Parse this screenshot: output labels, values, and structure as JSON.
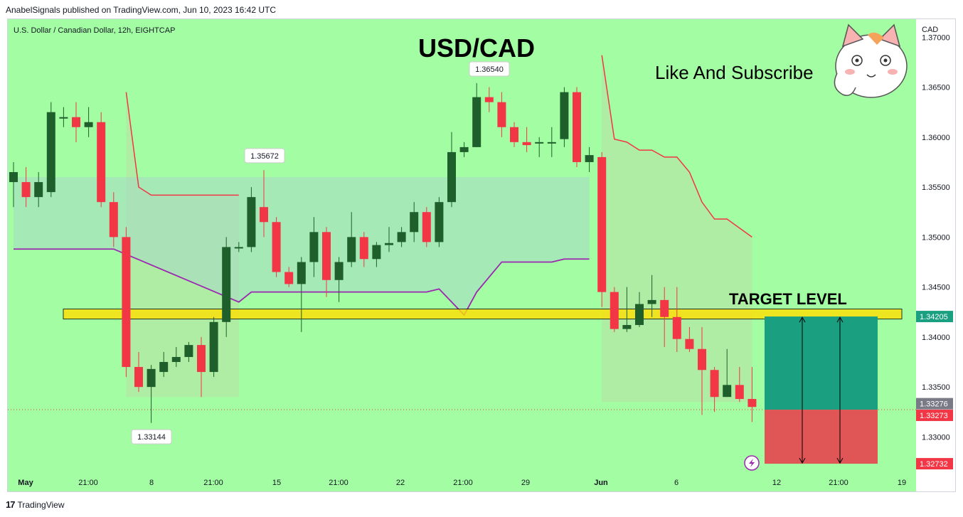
{
  "header": {
    "published_line": "AnabelSignals published on TradingView.com, Jun 10, 2023 16:42 UTC"
  },
  "chart": {
    "symbol_line": "U.S. Dollar / Canadian Dollar, 12h, EIGHTCAP",
    "title": "USD/CAD",
    "subscribe_text": "Like And Subscribe",
    "target_text": "TARGET LEVEL",
    "currency": "CAD",
    "background": "#a3fda3",
    "bull_color": "#1f5f2c",
    "bear_color": "#f23645"
  },
  "footer": {
    "brand": "TradingView"
  },
  "chart_data": {
    "type": "candlestick",
    "ylim": [
      1.3264,
      1.3718
    ],
    "y_ticks": [
      "1.37000",
      "1.36500",
      "1.36000",
      "1.35500",
      "1.35000",
      "1.34500",
      "1.34000",
      "1.33500",
      "1.33000"
    ],
    "x_ticks": [
      "May",
      "21:00",
      "8",
      "21:00",
      "15",
      "21:00",
      "22",
      "21:00",
      "29",
      "Jun",
      "6",
      "12",
      "21:00",
      "19"
    ],
    "price_labels": [
      {
        "text": "1.34205",
        "value": 1.34205,
        "color": "#1a9f80"
      },
      {
        "text": "1.33276",
        "value": 1.33276,
        "color": "#787b86"
      },
      {
        "text": "1.33273",
        "value": 1.33273,
        "color": "#f23645"
      },
      {
        "text": "1.32732",
        "value": 1.32732,
        "color": "#f23645"
      }
    ],
    "callouts": [
      {
        "text": "1.35672",
        "value": 1.35672,
        "pos": "above"
      },
      {
        "text": "1.36540",
        "value": 1.3654,
        "pos": "above"
      },
      {
        "text": "1.33144",
        "value": 1.33144,
        "pos": "below"
      }
    ],
    "target_level": {
      "low": 1.3418,
      "high": 1.3428
    },
    "position": {
      "entry": 1.33273,
      "target": 1.34205,
      "stop": 1.32732
    },
    "candles": [
      [
        1.3555,
        1.3565,
        1.353,
        1.3575
      ],
      [
        1.3555,
        1.354,
        1.353,
        1.357
      ],
      [
        1.354,
        1.3555,
        1.353,
        1.3565
      ],
      [
        1.3545,
        1.3625,
        1.354,
        1.3635
      ],
      [
        1.362,
        1.362,
        1.361,
        1.363
      ],
      [
        1.362,
        1.361,
        1.3595,
        1.3635
      ],
      [
        1.361,
        1.3615,
        1.36,
        1.363
      ],
      [
        1.3615,
        1.3535,
        1.353,
        1.3625
      ],
      [
        1.3535,
        1.35,
        1.349,
        1.3545
      ],
      [
        1.35,
        1.337,
        1.336,
        1.351
      ],
      [
        1.337,
        1.335,
        1.3345,
        1.3385
      ],
      [
        1.335,
        1.3368,
        1.3314,
        1.3372
      ],
      [
        1.3365,
        1.3375,
        1.336,
        1.3385
      ],
      [
        1.3375,
        1.338,
        1.337,
        1.339
      ],
      [
        1.338,
        1.3392,
        1.3375,
        1.3395
      ],
      [
        1.3392,
        1.3365,
        1.334,
        1.34
      ],
      [
        1.3365,
        1.3415,
        1.336,
        1.342
      ],
      [
        1.3415,
        1.349,
        1.34,
        1.35
      ],
      [
        1.349,
        1.349,
        1.3485,
        1.3495
      ],
      [
        1.349,
        1.354,
        1.3485,
        1.355
      ],
      [
        1.353,
        1.3515,
        1.35,
        1.3567
      ],
      [
        1.3515,
        1.3465,
        1.346,
        1.352
      ],
      [
        1.3465,
        1.3453,
        1.345,
        1.347
      ],
      [
        1.3453,
        1.3475,
        1.3405,
        1.348
      ],
      [
        1.3475,
        1.3505,
        1.346,
        1.352
      ],
      [
        1.3505,
        1.3457,
        1.344,
        1.351
      ],
      [
        1.3457,
        1.3475,
        1.3435,
        1.348
      ],
      [
        1.3475,
        1.35,
        1.347,
        1.3525
      ],
      [
        1.35,
        1.3478,
        1.347,
        1.3505
      ],
      [
        1.3478,
        1.3492,
        1.347,
        1.3495
      ],
      [
        1.3492,
        1.3494,
        1.3485,
        1.351
      ],
      [
        1.3495,
        1.3505,
        1.349,
        1.351
      ],
      [
        1.3505,
        1.3525,
        1.3495,
        1.3535
      ],
      [
        1.3525,
        1.3495,
        1.349,
        1.353
      ],
      [
        1.3495,
        1.3535,
        1.349,
        1.354
      ],
      [
        1.3535,
        1.3585,
        1.353,
        1.3605
      ],
      [
        1.3585,
        1.359,
        1.358,
        1.3595
      ],
      [
        1.359,
        1.364,
        1.359,
        1.3654
      ],
      [
        1.364,
        1.3635,
        1.3625,
        1.365
      ],
      [
        1.3635,
        1.361,
        1.36,
        1.3645
      ],
      [
        1.361,
        1.3595,
        1.359,
        1.3615
      ],
      [
        1.3595,
        1.3592,
        1.3585,
        1.361
      ],
      [
        1.3594,
        1.3595,
        1.358,
        1.36
      ],
      [
        1.3595,
        1.3595,
        1.358,
        1.361
      ],
      [
        1.3598,
        1.3645,
        1.359,
        1.365
      ],
      [
        1.3645,
        1.3575,
        1.357,
        1.365
      ],
      [
        1.3575,
        1.3582,
        1.3565,
        1.359
      ],
      [
        1.358,
        1.3445,
        1.343,
        1.3585
      ],
      [
        1.3445,
        1.3408,
        1.3405,
        1.345
      ],
      [
        1.3408,
        1.3412,
        1.3405,
        1.345
      ],
      [
        1.3412,
        1.3433,
        1.341,
        1.3445
      ],
      [
        1.3433,
        1.3437,
        1.342,
        1.3462
      ],
      [
        1.3437,
        1.342,
        1.339,
        1.345
      ],
      [
        1.342,
        1.3398,
        1.3385,
        1.345
      ],
      [
        1.3398,
        1.3388,
        1.3385,
        1.341
      ],
      [
        1.3388,
        1.3367,
        1.3322,
        1.341
      ],
      [
        1.3367,
        1.334,
        1.3325,
        1.337
      ],
      [
        1.334,
        1.3352,
        1.334,
        1.3388
      ],
      [
        1.3352,
        1.3338,
        1.3335,
        1.337
      ],
      [
        1.3338,
        1.333,
        1.3315,
        1.337
      ]
    ],
    "cloud_upper": [
      [
        9,
        1.3645
      ],
      [
        10,
        1.355
      ],
      [
        11,
        1.3542
      ],
      [
        18,
        1.3542
      ],
      [
        47,
        1.3682
      ],
      [
        48,
        1.3598
      ],
      [
        49,
        1.3595
      ],
      [
        50,
        1.3587
      ],
      [
        51,
        1.3587
      ],
      [
        52,
        1.358
      ],
      [
        53,
        1.358
      ],
      [
        54,
        1.3565
      ],
      [
        55,
        1.3535
      ],
      [
        56,
        1.3518
      ],
      [
        57,
        1.3518
      ],
      [
        59,
        1.35
      ]
    ],
    "cloud_lower": [
      [
        0,
        1.3488
      ],
      [
        8,
        1.3488
      ],
      [
        18,
        1.3435
      ],
      [
        19,
        1.3445
      ],
      [
        33,
        1.3445
      ],
      [
        34,
        1.3448
      ],
      [
        36,
        1.3422
      ],
      [
        37,
        1.3445
      ],
      [
        38,
        1.346
      ],
      [
        39,
        1.3475
      ],
      [
        43,
        1.3475
      ],
      [
        44,
        1.3478
      ],
      [
        46,
        1.3478
      ]
    ],
    "purple_line": [
      [
        0,
        1.3488
      ],
      [
        8,
        1.3488
      ],
      [
        18,
        1.3435
      ],
      [
        19,
        1.3445
      ],
      [
        33,
        1.3445
      ],
      [
        34,
        1.3448
      ],
      [
        36,
        1.3422
      ],
      [
        37,
        1.3445
      ],
      [
        38,
        1.346
      ],
      [
        39,
        1.3475
      ],
      [
        43,
        1.3475
      ],
      [
        44,
        1.3478
      ],
      [
        46,
        1.3478
      ]
    ],
    "red_line": [
      [
        9,
        1.3645
      ],
      [
        10,
        1.355
      ],
      [
        11,
        1.3542
      ],
      [
        18,
        1.3542
      ],
      [
        47,
        1.3682
      ],
      [
        48,
        1.3598
      ],
      [
        49,
        1.3595
      ],
      [
        50,
        1.3587
      ],
      [
        51,
        1.3587
      ],
      [
        52,
        1.358
      ],
      [
        53,
        1.358
      ],
      [
        54,
        1.3565
      ],
      [
        55,
        1.3535
      ],
      [
        56,
        1.3518
      ],
      [
        57,
        1.3518
      ],
      [
        59,
        1.35
      ]
    ]
  }
}
